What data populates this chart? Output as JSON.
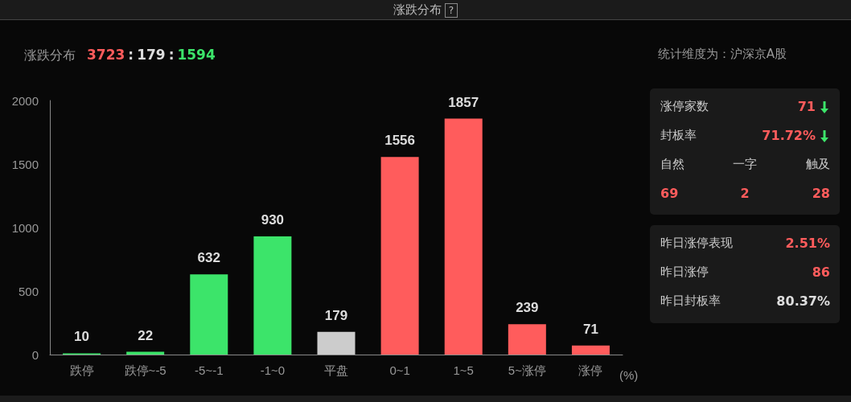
{
  "chart_data": [
    {
      "type": "bar",
      "title": "涨跌分布",
      "annotations": [
        "?",
        "涨跌分布",
        "3723",
        ":",
        "179",
        ":",
        "1594",
        "统计维度为：沪深京A股"
      ],
      "categories": [
        "跌停",
        "跌停~-5",
        "-5~-1",
        "-1~0",
        "平盘",
        "0~1",
        "1~5",
        "5~涨停",
        "涨停"
      ],
      "values": [
        10,
        22,
        632,
        930,
        179,
        1556,
        1857,
        239,
        71
      ],
      "colors": [
        "#3ce46a",
        "#3ce46a",
        "#3ce46a",
        "#3ce46a",
        "#cccccc",
        "#ff5c5c",
        "#ff5c5c",
        "#ff5c5c",
        "#ff5c5c"
      ],
      "xlabel": "(%)",
      "ylim": [
        0,
        2000
      ],
      "yticks": [
        0,
        500,
        1000,
        1500,
        2000
      ],
      "data_labels": true,
      "grid": false
    },
    {
      "type": "other",
      "annotations": [
        "涨停家数",
        "71",
        "封板率",
        "71.72%",
        "自然",
        "一字",
        "触及",
        "69",
        "2",
        "28",
        "昨日涨停表现",
        "2.51%",
        "昨日涨停",
        "86",
        "昨日封板率",
        "80.37%"
      ]
    }
  ]
}
